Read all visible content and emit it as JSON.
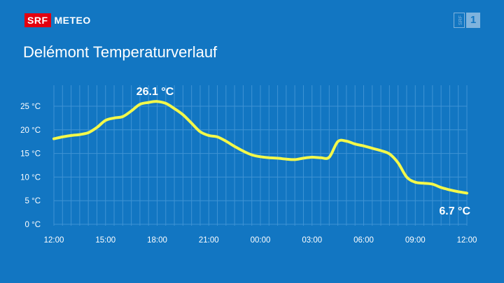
{
  "header": {
    "brand_logo": "SRF",
    "brand_name": "METEO",
    "channel_logo_a": "SRF",
    "channel_logo_b": "1"
  },
  "colors": {
    "background": "#1276c2",
    "line": "#f3f84a",
    "grid": "#3f93d4",
    "brand_red": "#e3000f"
  },
  "chart_data": {
    "type": "line",
    "title": "Delémont Temperaturverlauf",
    "xlabel": "",
    "ylabel": "",
    "ylim": [
      0,
      25
    ],
    "xlim": [
      0,
      24
    ],
    "x_ticks": [
      {
        "hour": 0,
        "label": "12:00"
      },
      {
        "hour": 3,
        "label": "15:00"
      },
      {
        "hour": 6,
        "label": "18:00"
      },
      {
        "hour": 9,
        "label": "21:00"
      },
      {
        "hour": 12,
        "label": "00:00"
      },
      {
        "hour": 15,
        "label": "03:00"
      },
      {
        "hour": 18,
        "label": "06:00"
      },
      {
        "hour": 21,
        "label": "09:00"
      },
      {
        "hour": 24,
        "label": "12:00"
      }
    ],
    "y_ticks": [
      {
        "value": 0,
        "label": "0 °C"
      },
      {
        "value": 5,
        "label": "5 °C"
      },
      {
        "value": 10,
        "label": "10 °C"
      },
      {
        "value": 15,
        "label": "15 °C"
      },
      {
        "value": 20,
        "label": "20 °C"
      },
      {
        "value": 25,
        "label": "25 °C"
      }
    ],
    "grid": true,
    "series": [
      {
        "color": "#f3f84a",
        "points": [
          [
            0,
            18.1
          ],
          [
            0.5,
            18.5
          ],
          [
            1,
            18.8
          ],
          [
            1.5,
            19.0
          ],
          [
            2,
            19.4
          ],
          [
            2.5,
            20.5
          ],
          [
            3,
            22.0
          ],
          [
            3.5,
            22.5
          ],
          [
            4,
            22.8
          ],
          [
            4.5,
            24.0
          ],
          [
            5,
            25.4
          ],
          [
            5.5,
            25.8
          ],
          [
            6,
            26.0
          ],
          [
            6.5,
            25.6
          ],
          [
            7,
            24.5
          ],
          [
            7.5,
            23.2
          ],
          [
            8,
            21.4
          ],
          [
            8.5,
            19.6
          ],
          [
            9,
            18.8
          ],
          [
            9.5,
            18.5
          ],
          [
            10,
            17.6
          ],
          [
            10.5,
            16.5
          ],
          [
            11,
            15.5
          ],
          [
            11.5,
            14.7
          ],
          [
            12,
            14.3
          ],
          [
            12.5,
            14.1
          ],
          [
            13,
            14.0
          ],
          [
            13.5,
            13.8
          ],
          [
            14,
            13.7
          ],
          [
            14.5,
            14.0
          ],
          [
            15,
            14.2
          ],
          [
            15.5,
            14.1
          ],
          [
            16,
            14.2
          ],
          [
            16.5,
            17.5
          ],
          [
            17,
            17.6
          ],
          [
            17.5,
            17.0
          ],
          [
            18,
            16.6
          ],
          [
            18.5,
            16.1
          ],
          [
            19,
            15.6
          ],
          [
            19.5,
            14.9
          ],
          [
            20,
            13.0
          ],
          [
            20.5,
            10.0
          ],
          [
            21,
            8.9
          ],
          [
            21.5,
            8.7
          ],
          [
            22,
            8.5
          ],
          [
            22.5,
            7.8
          ],
          [
            23,
            7.3
          ],
          [
            23.5,
            6.9
          ],
          [
            24,
            6.6
          ]
        ]
      }
    ],
    "annotations": [
      {
        "text": "26.1 °C",
        "hour": 6,
        "value": 26.1,
        "kind": "max"
      },
      {
        "text": "6.7 °C",
        "hour": 24,
        "value": 6.7,
        "kind": "min"
      }
    ]
  }
}
